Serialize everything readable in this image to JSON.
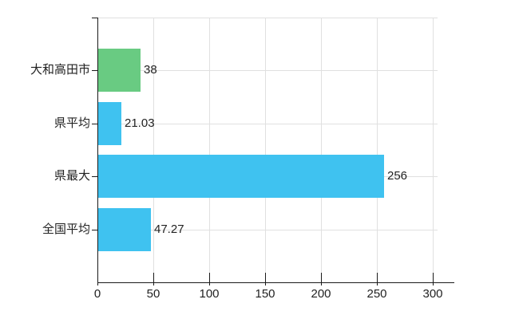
{
  "chart_data": {
    "type": "bar",
    "orientation": "horizontal",
    "title": "",
    "categories": [
      "大和高田市",
      "県平均",
      "県最大",
      "全国平均"
    ],
    "values": [
      38,
      21.03,
      256,
      47.27
    ],
    "value_labels": [
      "38",
      "21.03",
      "256",
      "47.27"
    ],
    "bar_colors": [
      "#69cb82",
      "#3fc2f0",
      "#3fc2f0",
      "#3fc2f0"
    ],
    "x_ticks": [
      "0",
      "50",
      "100",
      "150",
      "200",
      "250",
      "300"
    ],
    "x_tick_values": [
      0,
      50,
      100,
      150,
      200,
      250,
      300
    ],
    "xlim": [
      0,
      300
    ],
    "grid": true,
    "legend_position": "none"
  },
  "colors": {
    "bar_green": "#69cb82",
    "bar_blue": "#3fc2f0",
    "grid": "#e0e0e0",
    "axis": "#1a1a1a",
    "text": "#222222",
    "background": "#ffffff"
  }
}
